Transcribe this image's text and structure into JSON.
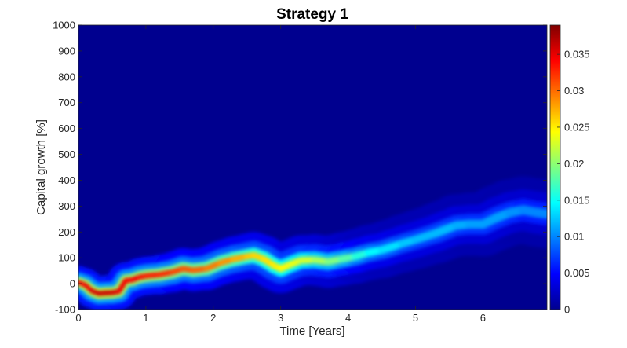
{
  "chart_data": {
    "type": "heatmap",
    "title": "Strategy 1",
    "xlabel": "Time [Years]",
    "ylabel": "Capital growth [%]",
    "xlim": [
      0,
      6.95
    ],
    "ylim": [
      -100,
      1000
    ],
    "x_ticks": [
      0,
      1,
      2,
      3,
      4,
      5,
      6
    ],
    "y_ticks": [
      -100,
      0,
      100,
      200,
      300,
      400,
      500,
      600,
      700,
      800,
      900,
      1000
    ],
    "colorbar": {
      "colormap": "jet",
      "range": [
        0,
        0.039
      ],
      "ticks": [
        0,
        0.005,
        0.01,
        0.015,
        0.02,
        0.025,
        0.03,
        0.035
      ],
      "tick_labels": [
        "0",
        "0.005",
        "0.01",
        "0.015",
        "0.02",
        "0.025",
        "0.03",
        "0.035"
      ]
    },
    "background_color": "#00008f",
    "ridge": [
      {
        "x": 0.0,
        "y": 5,
        "density": 0.034
      },
      {
        "x": 0.1,
        "y": -5,
        "density": 0.034
      },
      {
        "x": 0.2,
        "y": -28,
        "density": 0.035
      },
      {
        "x": 0.3,
        "y": -38,
        "density": 0.036
      },
      {
        "x": 0.4,
        "y": -36,
        "density": 0.036
      },
      {
        "x": 0.5,
        "y": -35,
        "density": 0.036
      },
      {
        "x": 0.6,
        "y": -30,
        "density": 0.035
      },
      {
        "x": 0.7,
        "y": 12,
        "density": 0.034
      },
      {
        "x": 0.8,
        "y": 15,
        "density": 0.034
      },
      {
        "x": 0.9,
        "y": 25,
        "density": 0.034
      },
      {
        "x": 1.0,
        "y": 30,
        "density": 0.033
      },
      {
        "x": 1.2,
        "y": 35,
        "density": 0.033
      },
      {
        "x": 1.4,
        "y": 45,
        "density": 0.032
      },
      {
        "x": 1.55,
        "y": 58,
        "density": 0.031
      },
      {
        "x": 1.7,
        "y": 52,
        "density": 0.031
      },
      {
        "x": 1.9,
        "y": 58,
        "density": 0.03
      },
      {
        "x": 2.1,
        "y": 80,
        "density": 0.029
      },
      {
        "x": 2.3,
        "y": 95,
        "density": 0.028
      },
      {
        "x": 2.5,
        "y": 105,
        "density": 0.027
      },
      {
        "x": 2.6,
        "y": 110,
        "density": 0.026
      },
      {
        "x": 2.75,
        "y": 95,
        "density": 0.026
      },
      {
        "x": 2.9,
        "y": 70,
        "density": 0.025
      },
      {
        "x": 3.0,
        "y": 58,
        "density": 0.025
      },
      {
        "x": 3.15,
        "y": 75,
        "density": 0.024
      },
      {
        "x": 3.3,
        "y": 90,
        "density": 0.023
      },
      {
        "x": 3.5,
        "y": 92,
        "density": 0.022
      },
      {
        "x": 3.7,
        "y": 85,
        "density": 0.02
      },
      {
        "x": 3.9,
        "y": 95,
        "density": 0.019
      },
      {
        "x": 4.1,
        "y": 105,
        "density": 0.017
      },
      {
        "x": 4.3,
        "y": 120,
        "density": 0.015
      },
      {
        "x": 4.5,
        "y": 130,
        "density": 0.014
      },
      {
        "x": 4.8,
        "y": 155,
        "density": 0.013
      },
      {
        "x": 5.0,
        "y": 170,
        "density": 0.012
      },
      {
        "x": 5.3,
        "y": 195,
        "density": 0.012
      },
      {
        "x": 5.6,
        "y": 225,
        "density": 0.012
      },
      {
        "x": 5.8,
        "y": 230,
        "density": 0.011
      },
      {
        "x": 6.0,
        "y": 230,
        "density": 0.011
      },
      {
        "x": 6.2,
        "y": 255,
        "density": 0.011
      },
      {
        "x": 6.4,
        "y": 275,
        "density": 0.011
      },
      {
        "x": 6.6,
        "y": 285,
        "density": 0.01
      },
      {
        "x": 6.8,
        "y": 275,
        "density": 0.01
      },
      {
        "x": 6.95,
        "y": 270,
        "density": 0.01
      }
    ]
  }
}
